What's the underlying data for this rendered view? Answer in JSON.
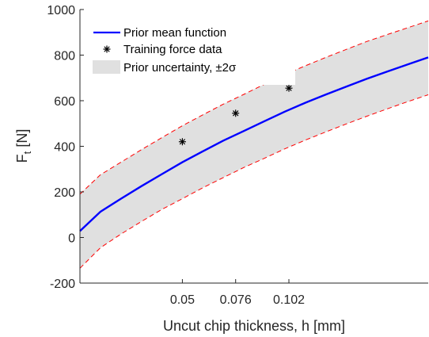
{
  "chart_data": {
    "type": "line",
    "xlabel": "Uncut chip thickness, h [mm]",
    "ylabel": {
      "base": "F",
      "subscript": "t",
      "suffix": " [N]"
    },
    "xlim": [
      0,
      0.17
    ],
    "ylim": [
      -200,
      1000
    ],
    "x_ticks": [
      0.05,
      0.076,
      0.102
    ],
    "x_tick_labels": [
      "0.05",
      "0.076",
      "0.102"
    ],
    "y_ticks": [
      -200,
      0,
      200,
      400,
      600,
      800,
      1000
    ],
    "y_tick_labels": [
      "-200",
      "0",
      "200",
      "400",
      "600",
      "800",
      "1000"
    ],
    "grid": false,
    "legend_position": "top-left",
    "series": [
      {
        "name": "Prior mean function",
        "kind": "line",
        "color": "#0000ff",
        "x": [
          0,
          0.01,
          0.02,
          0.03,
          0.04,
          0.05,
          0.06,
          0.07,
          0.08,
          0.09,
          0.1,
          0.11,
          0.12,
          0.13,
          0.14,
          0.15,
          0.16,
          0.17
        ],
        "y": [
          28,
          113,
          170,
          225,
          278,
          330,
          378,
          425,
          467,
          510,
          552,
          591,
          627,
          662,
          696,
          728,
          759,
          790
        ]
      },
      {
        "name": "Training force data",
        "kind": "scatter",
        "marker": "asterisk",
        "color": "#000000",
        "x": [
          0.05,
          0.076,
          0.102
        ],
        "y": [
          420,
          545,
          655
        ]
      },
      {
        "name": "Prior uncertainty, ±2σ",
        "kind": "band",
        "fill": "#e0e0e0",
        "edge_color": "#ff0000",
        "edge_style": "dashed",
        "x": [
          0,
          0.01,
          0.02,
          0.03,
          0.04,
          0.05,
          0.06,
          0.07,
          0.08,
          0.09,
          0.1,
          0.11,
          0.12,
          0.13,
          0.14,
          0.15,
          0.16,
          0.17
        ],
        "lower": [
          -135,
          -45,
          15,
          70,
          123,
          170,
          218,
          263,
          307,
          347,
          389,
          427,
          463,
          498,
          532,
          564,
          596,
          626
        ],
        "upper": [
          190,
          275,
          330,
          385,
          438,
          490,
          538,
          585,
          628,
          672,
          715,
          753,
          790,
          825,
          860,
          890,
          920,
          950
        ]
      }
    ]
  }
}
